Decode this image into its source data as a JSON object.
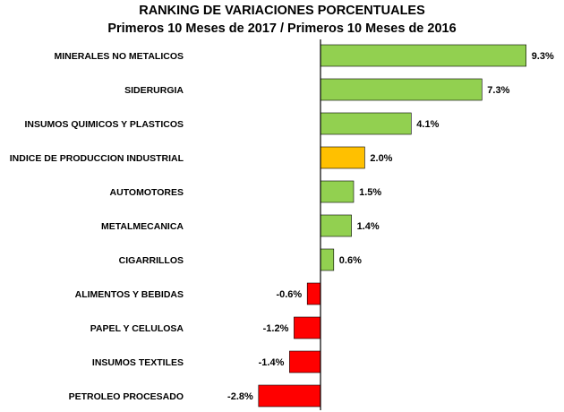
{
  "chart_data": {
    "type": "bar",
    "orientation": "horizontal",
    "title": "RANKING DE VARIACIONES PORCENTUALES",
    "subtitle": "Primeros 10 Meses de 2017 / Primeros 10 Meses de 2016",
    "categories": [
      "MINERALES NO METALICOS",
      "SIDERURGIA",
      "INSUMOS QUIMICOS Y PLASTICOS",
      "INDICE DE PRODUCCION INDUSTRIAL",
      "AUTOMOTORES",
      "METALMECANICA",
      "CIGARRILLOS",
      "ALIMENTOS Y BEBIDAS",
      "PAPEL Y CELULOSA",
      "INSUMOS TEXTILES",
      "PETROLEO PROCESADO"
    ],
    "values": [
      9.3,
      7.3,
      4.1,
      2.0,
      1.5,
      1.4,
      0.6,
      -0.6,
      -1.2,
      -1.4,
      -2.8
    ],
    "value_labels": [
      "9.3%",
      "7.3%",
      "4.1%",
      "2.0%",
      "1.5%",
      "1.4%",
      "0.6%",
      "-0.6%",
      "-1.2%",
      "-1.4%",
      "-2.8%"
    ],
    "highlight_category": "INDICE DE PRODUCCION INDUSTRIAL",
    "colors": {
      "positive": "#92D050",
      "negative": "#FF0000",
      "highlight": "#FFC000",
      "bar_outline": "#000000",
      "axis": "#000000"
    },
    "xlabel": "",
    "ylabel": "",
    "grid": false,
    "legend": "none"
  }
}
